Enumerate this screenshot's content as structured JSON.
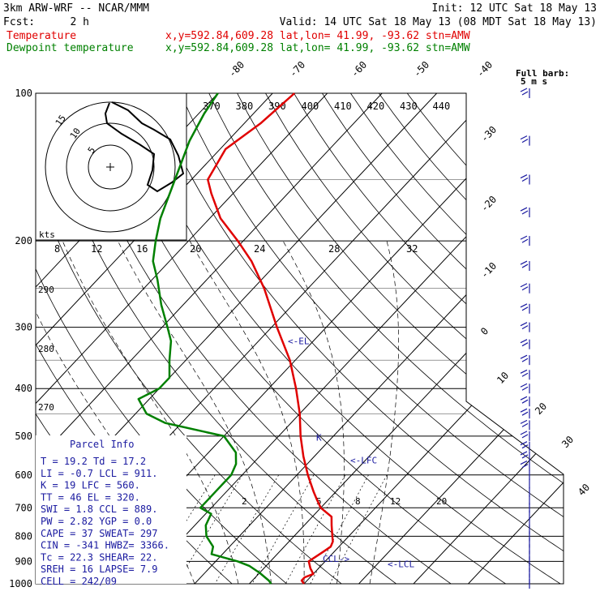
{
  "header": {
    "model": "3km ARW-WRF -- NCAR/MMM",
    "init": "Init: 12 UTC Sat 18 May 13",
    "fcst_label": "Fcst:",
    "fcst_value": "2 h",
    "valid": "Valid: 14 UTC Sat 18 May 13 (08 MDT Sat 18 May 13)",
    "temp_label": "Temperature",
    "temp_info": "x,y=592.84,609.28   lat,lon= 41.99, -93.62  stn=AMW",
    "dew_label": "Dewpoint temperature",
    "dew_info": "x,y=592.84,609.28   lat,lon= 41.99, -93.62  stn=AMW"
  },
  "colors": {
    "temperature": "#e00000",
    "dewpoint": "#008000",
    "annotation": "#1a1aa0",
    "grid": "#000000"
  },
  "chart_data": {
    "type": "line",
    "subtype": "skew-T log-p sounding",
    "ylabel_ticks": [
      "100",
      "200",
      "300",
      "400",
      "500",
      "600",
      "700",
      "800",
      "900",
      "1000"
    ],
    "pressure_ticks": [
      100,
      200,
      300,
      400,
      500,
      600,
      700,
      800,
      900,
      1000
    ],
    "isotherm_labels": [
      "-80",
      "-70",
      "-60",
      "-50",
      "-40",
      "-30",
      "-20",
      "-10",
      "0",
      "10",
      "20",
      "30",
      "40"
    ],
    "theta_labels": [
      "370",
      "380",
      "390",
      "400",
      "410",
      "420",
      "430",
      "440"
    ],
    "wind_scale_labels": [
      "8",
      "12",
      "16",
      "20",
      "24",
      "28",
      "32"
    ],
    "wind_scale_unit": "kts",
    "dry_adiabat_labels": [
      "290",
      "280",
      "270"
    ],
    "mixing_ratio_labels": [
      "2",
      "5",
      "8",
      "12",
      "20"
    ],
    "series": [
      {
        "name": "Temperature",
        "color": "#e00000",
        "points": [
          [
            1000,
            20
          ],
          [
            985,
            19
          ],
          [
            970,
            19
          ],
          [
            955,
            20
          ],
          [
            930,
            18.5
          ],
          [
            900,
            17
          ],
          [
            880,
            17.5
          ],
          [
            860,
            18
          ],
          [
            840,
            18.5
          ],
          [
            820,
            18
          ],
          [
            800,
            17
          ],
          [
            760,
            15
          ],
          [
            730,
            13.5
          ],
          [
            700,
            10
          ],
          [
            675,
            8
          ],
          [
            650,
            6
          ],
          [
            600,
            2
          ],
          [
            550,
            -2
          ],
          [
            500,
            -6
          ],
          [
            450,
            -10
          ],
          [
            400,
            -15
          ],
          [
            350,
            -21
          ],
          [
            300,
            -29
          ],
          [
            250,
            -38
          ],
          [
            220,
            -45
          ],
          [
            200,
            -51
          ],
          [
            180,
            -58
          ],
          [
            160,
            -64
          ],
          [
            150,
            -67
          ],
          [
            130,
            -69
          ],
          [
            115,
            -67
          ],
          [
            100,
            -66
          ]
        ]
      },
      {
        "name": "Dewpoint temperature",
        "color": "#008000",
        "points": [
          [
            1000,
            14
          ],
          [
            985,
            13
          ],
          [
            950,
            10
          ],
          [
            920,
            7
          ],
          [
            900,
            4
          ],
          [
            870,
            -2
          ],
          [
            840,
            -3
          ],
          [
            800,
            -6
          ],
          [
            760,
            -8
          ],
          [
            720,
            -9
          ],
          [
            700,
            -12
          ],
          [
            680,
            -12
          ],
          [
            650,
            -12
          ],
          [
            620,
            -12
          ],
          [
            600,
            -12
          ],
          [
            570,
            -13
          ],
          [
            540,
            -15
          ],
          [
            500,
            -20
          ],
          [
            470,
            -33
          ],
          [
            450,
            -38
          ],
          [
            420,
            -42
          ],
          [
            400,
            -40
          ],
          [
            380,
            -40
          ],
          [
            350,
            -43
          ],
          [
            320,
            -46
          ],
          [
            300,
            -49
          ],
          [
            270,
            -54
          ],
          [
            240,
            -59
          ],
          [
            220,
            -63
          ],
          [
            200,
            -66
          ],
          [
            180,
            -69
          ],
          [
            150,
            -73
          ],
          [
            125,
            -77
          ],
          [
            110,
            -79
          ],
          [
            100,
            -80
          ]
        ]
      }
    ],
    "level_markers": [
      {
        "label": "<-EL",
        "pressure": 320
      },
      {
        "label": "<-LFC",
        "pressure": 560
      },
      {
        "label": "CCL->",
        "pressure": 889
      },
      {
        "label": "<-LCL",
        "pressure": 911
      },
      {
        "label": "K",
        "pressure": 503
      }
    ],
    "wind_barb_caption": "Full barb:",
    "wind_barb_caption_value": "5 m s",
    "hodograph_labels": [
      "5",
      "10",
      "15"
    ]
  },
  "parcel_info": {
    "title": "Parcel Info",
    "rows": [
      "T  =   19.2  Td =  17.2",
      "LI =   -0.7  LCL =  911.",
      "K  =     19  LFC =  560.",
      "TT =     46  EL  =  320.",
      "SWI =   1.8  CCL =  889.",
      "PW =   2.82  YGP =   0.0",
      "CAPE =   37  SWEAT=  297",
      "CIN =  -341  HWBZ= 3366.",
      "Tc =   22.3  SHEAR=  22.",
      "SREH =   16  LAPSE=  7.9",
      "CELL = 242/09"
    ]
  }
}
